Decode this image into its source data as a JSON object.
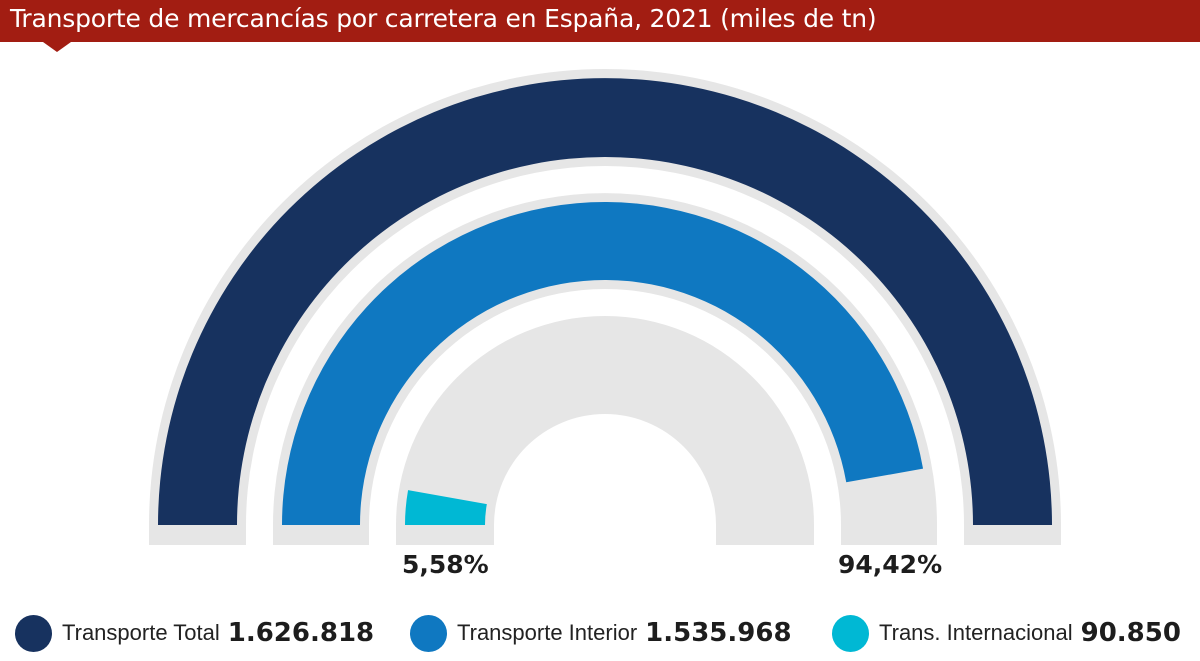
{
  "header": {
    "title": "Transporte de mercancías por carretera en España, 2021 (miles de tn)"
  },
  "colors": {
    "header": "#a21d12",
    "track": "#e6e6e6",
    "total": "#17325f",
    "interior": "#0f78c1",
    "internacional": "#00b8d4"
  },
  "chart_data": {
    "type": "radial-bar",
    "title": "Transporte de mercancías por carretera en España, 2021 (miles de tn)",
    "series": [
      {
        "name": "Transporte Total",
        "value": "1.626.818",
        "share_pct": 100.0,
        "color": "#17325f"
      },
      {
        "name": "Transporte Interior",
        "value": "1.535.968",
        "share_pct": 94.42,
        "color": "#0f78c1"
      },
      {
        "name": "Trans. Internacional",
        "value": "90.850",
        "share_pct": 5.58,
        "color": "#00b8d4"
      }
    ],
    "data_labels": [
      "5,58%",
      "94,42%"
    ],
    "legend_position": "bottom"
  }
}
